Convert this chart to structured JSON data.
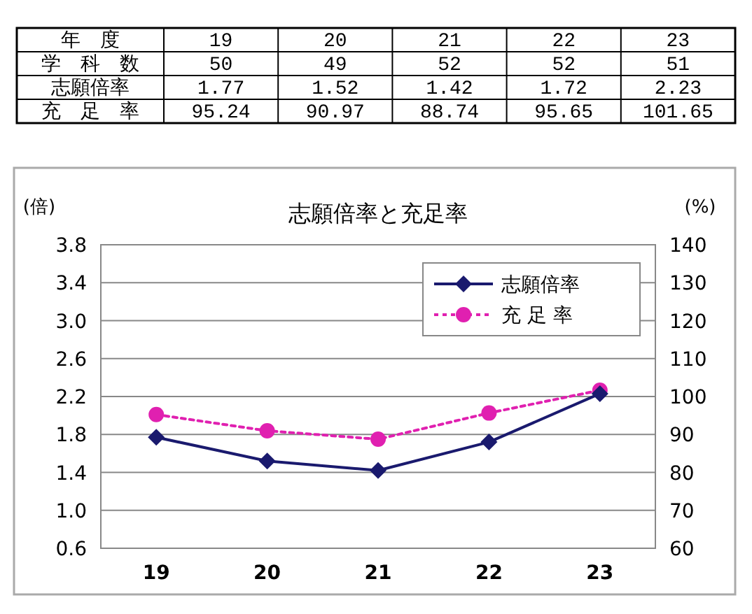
{
  "chart_data": [
    {
      "type": "heatmap",
      "annotations": [
        "年　度"
      ],
      "categories": [
        "19",
        "20",
        "21",
        "22",
        "23"
      ],
      "y_categories": [
        "学　科　数",
        "志願倍率",
        "充　足　率"
      ],
      "data_labels": true,
      "cells": [
        [
          50,
          49,
          52,
          52,
          51
        ],
        [
          1.77,
          1.52,
          1.42,
          1.72,
          2.23
        ],
        [
          95.24,
          90.97,
          88.74,
          95.65,
          101.65
        ]
      ]
    },
    {
      "type": "line",
      "title": "志願倍率と充足率",
      "ylabel": "(倍)",
      "y2label": "(%)",
      "categories": [
        "19",
        "20",
        "21",
        "22",
        "23"
      ],
      "ylim": [
        0.6,
        3.8
      ],
      "yticks": [
        0.6,
        {
          "value": 1.0,
          "label": "1.0"
        },
        1.4,
        1.8,
        2.2,
        2.6,
        {
          "value": 3.0,
          "label": "3.0"
        },
        3.4,
        3.8
      ],
      "y2lim": [
        60,
        140
      ],
      "y2ticks": [
        60,
        70,
        80,
        90,
        100,
        110,
        120,
        130,
        140
      ],
      "grid": "y",
      "legend": "top right",
      "series": [
        {
          "name": "志願倍率",
          "color": "#1a1a6e",
          "marker": "diamond",
          "line_style": "solid",
          "values": [
            1.77,
            1.52,
            1.42,
            1.72,
            2.23
          ]
        },
        {
          "name": "充 足 率",
          "color": "#e020b0",
          "marker": "circle",
          "line_style": "dotted",
          "axis": "y2",
          "values": [
            95.24,
            90.97,
            88.74,
            95.65,
            101.65
          ]
        }
      ]
    }
  ]
}
